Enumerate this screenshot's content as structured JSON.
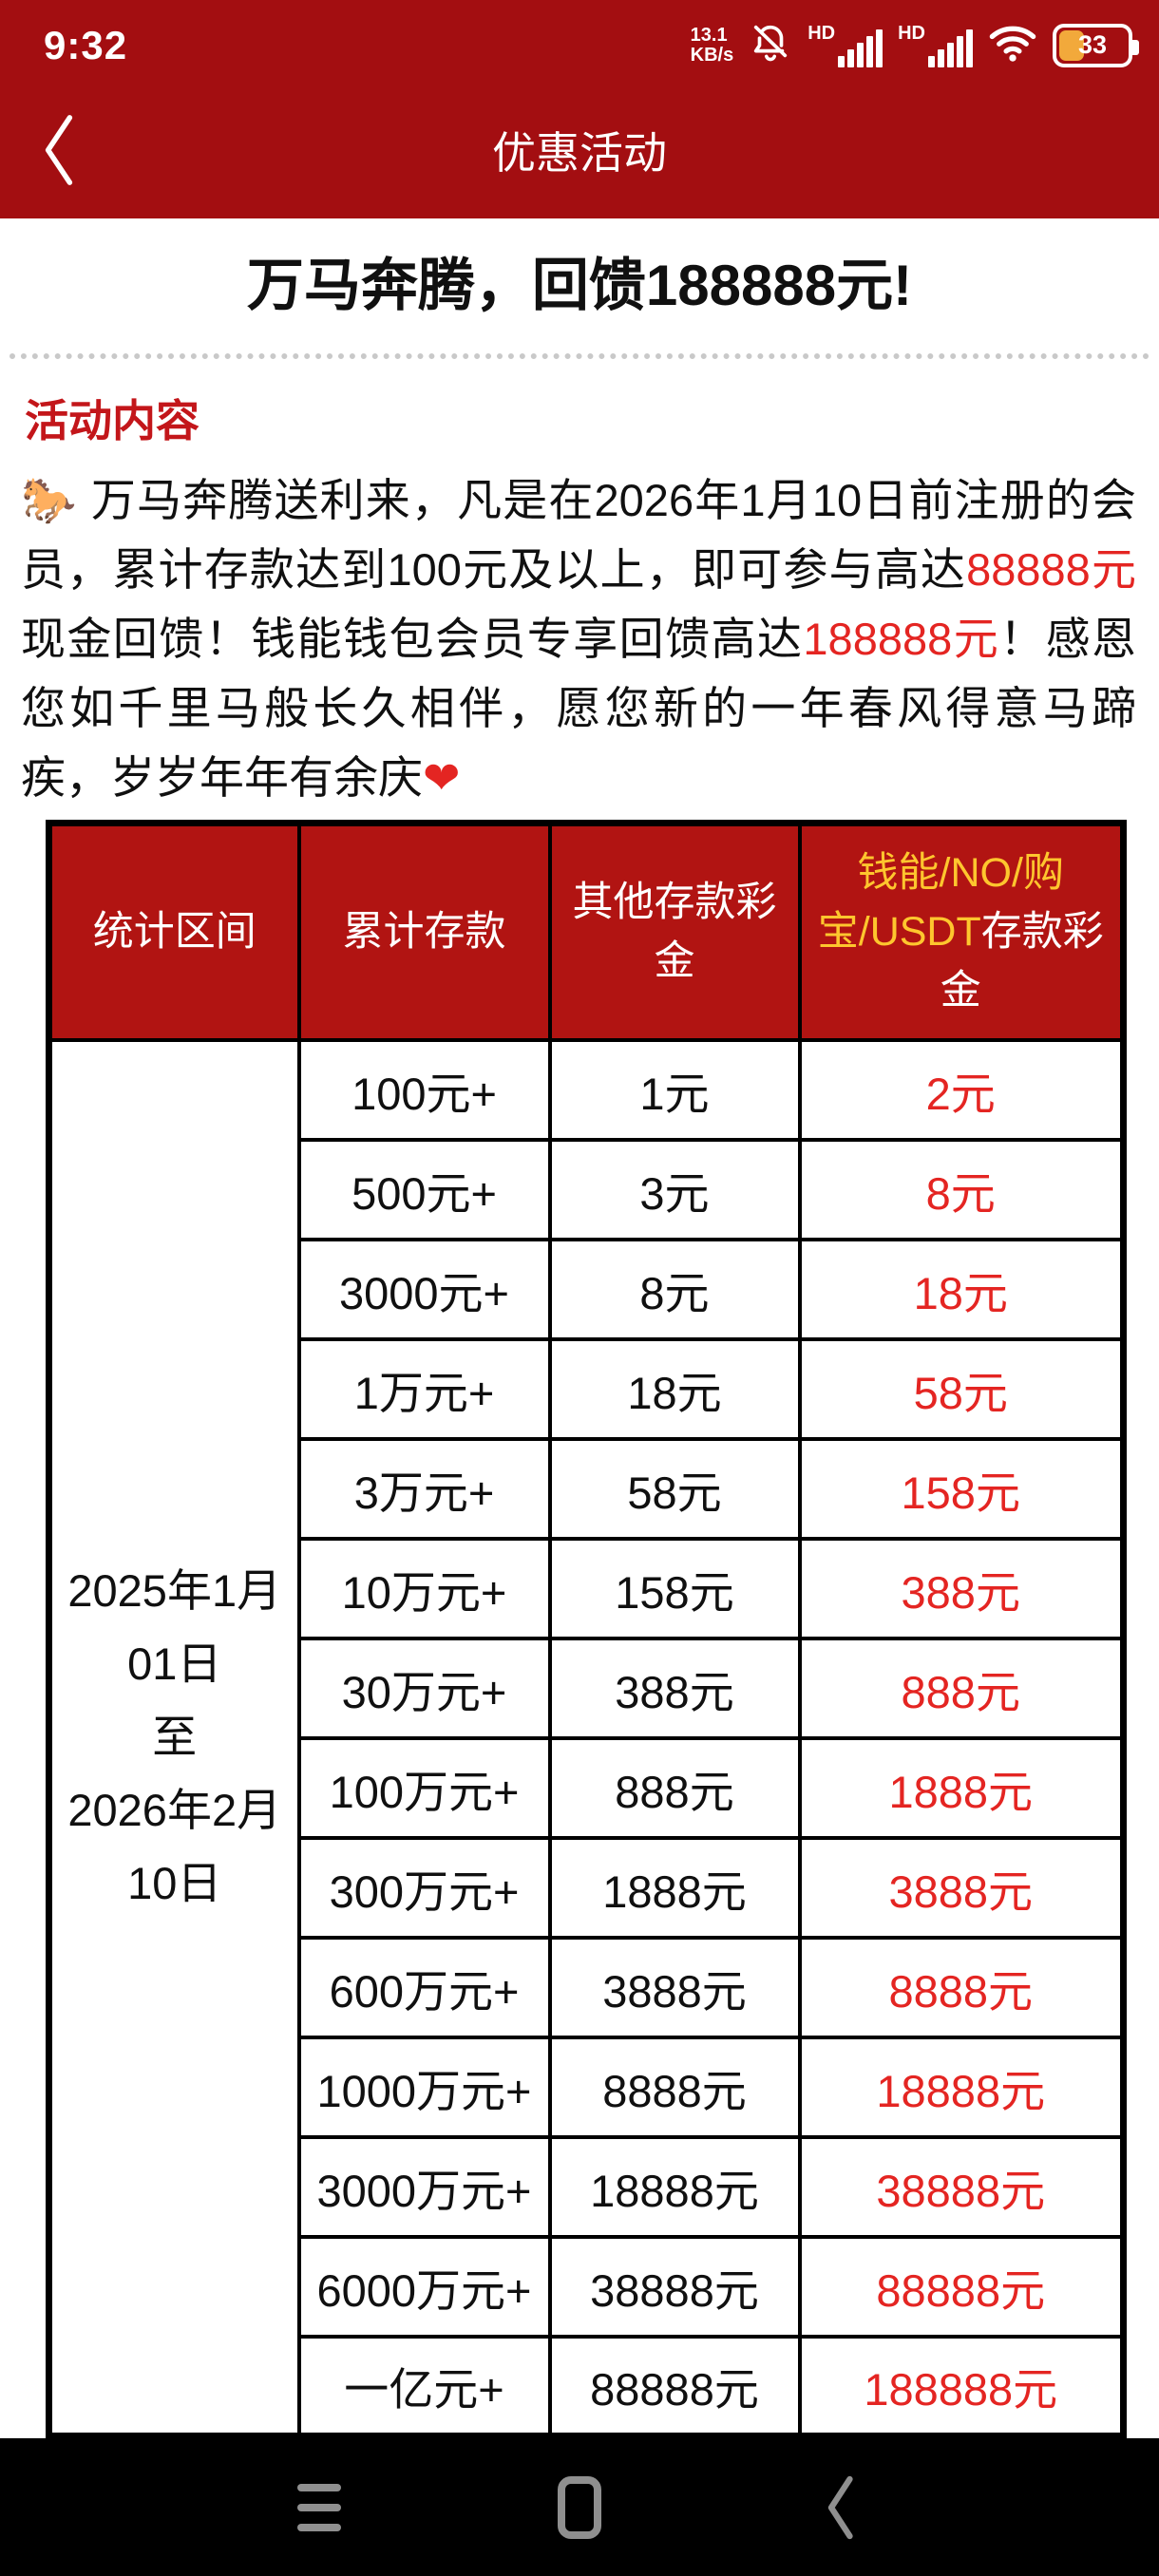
{
  "colors": {
    "brand_red": "#a30e11",
    "table_header_red": "#b11412",
    "highlight_red": "#e42522",
    "heading_red": "#c3161a",
    "gold": "#fec62e",
    "nav_black": "#000000",
    "nav_icon_gray": "#8f8f8f"
  },
  "status_bar": {
    "time": "9:32",
    "net_speed_value": "13.1",
    "net_speed_unit": "KB/s",
    "sim1_label": "HD",
    "sim2_label": "HD",
    "battery_percent": "33"
  },
  "nav_bar": {
    "title": "优惠活动"
  },
  "content": {
    "page_title": "万马奔腾，回馈188888元!",
    "section_heading": "活动内容",
    "paragraph": {
      "horse_emoji": "🐎",
      "seg1": " 万马奔腾送利来，凡是在2026年1月10日前注册的会员，累计存款达到100元及以上，即可参与高达",
      "red1": "88888元",
      "seg2": "现金回馈！钱能钱包会员专享回馈高达",
      "red2": "188888元",
      "seg3": "！感恩您如千里马般长久相伴，愿您新的一年春风得意马蹄疾，岁岁年年有余庆",
      "heart": "❤"
    }
  },
  "table": {
    "header_period": "统计区间",
    "header_deposit": "累计存款",
    "header_other_bonus": "其他存款彩金",
    "header_special_gold": "钱能/NO/购宝/USDT",
    "header_special_white": "存款彩金",
    "period_lines": [
      "2025年1月",
      "01日",
      "至",
      "2026年2月",
      "10日"
    ],
    "rows": [
      {
        "deposit": "100元+",
        "bonus": "1元",
        "special": "2元"
      },
      {
        "deposit": "500元+",
        "bonus": "3元",
        "special": "8元"
      },
      {
        "deposit": "3000元+",
        "bonus": "8元",
        "special": "18元"
      },
      {
        "deposit": "1万元+",
        "bonus": "18元",
        "special": "58元"
      },
      {
        "deposit": "3万元+",
        "bonus": "58元",
        "special": "158元"
      },
      {
        "deposit": "10万元+",
        "bonus": "158元",
        "special": "388元"
      },
      {
        "deposit": "30万元+",
        "bonus": "388元",
        "special": "888元"
      },
      {
        "deposit": "100万元+",
        "bonus": "888元",
        "special": "1888元"
      },
      {
        "deposit": "300万元+",
        "bonus": "1888元",
        "special": "3888元"
      },
      {
        "deposit": "600万元+",
        "bonus": "3888元",
        "special": "8888元"
      },
      {
        "deposit": "1000万元+",
        "bonus": "8888元",
        "special": "18888元"
      },
      {
        "deposit": "3000万元+",
        "bonus": "18888元",
        "special": "38888元"
      },
      {
        "deposit": "6000万元+",
        "bonus": "38888元",
        "special": "88888元"
      },
      {
        "deposit": "一亿元+",
        "bonus": "88888元",
        "special": "188888元"
      }
    ]
  }
}
